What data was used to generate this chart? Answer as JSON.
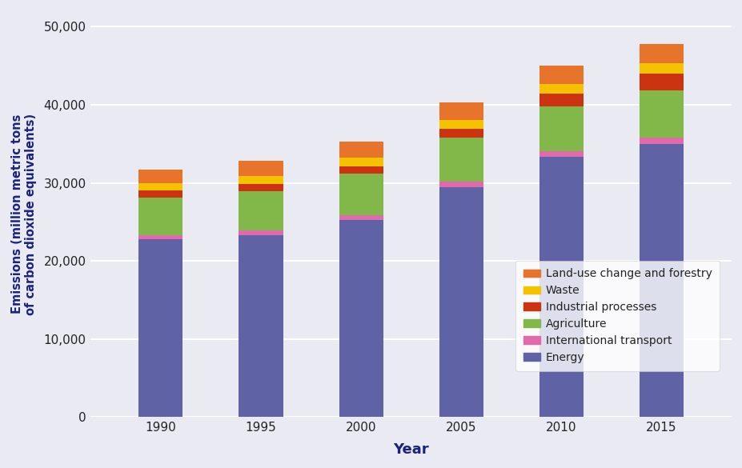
{
  "years": [
    1990,
    1995,
    2000,
    2005,
    2010,
    2015
  ],
  "Energy": [
    22800,
    23300,
    25200,
    29500,
    33300,
    35000
  ],
  "International_transport": [
    550,
    600,
    700,
    700,
    750,
    800
  ],
  "Agriculture": [
    4800,
    5000,
    5300,
    5600,
    5700,
    6000
  ],
  "Industrial_processes": [
    900,
    950,
    900,
    1100,
    1700,
    2200
  ],
  "Waste": [
    900,
    1000,
    1100,
    1200,
    1200,
    1300
  ],
  "Land_use": [
    1800,
    2000,
    2100,
    2200,
    2400,
    2500
  ],
  "colors": {
    "Energy": "#6062a6",
    "International_transport": "#e06aab",
    "Agriculture": "#82b84a",
    "Industrial_processes": "#cc3311",
    "Waste": "#f5c200",
    "Land_use": "#e8732a"
  },
  "legend_labels": [
    "Land-use change and forestry",
    "Waste",
    "Industrial processes",
    "Agriculture",
    "International transport",
    "Energy"
  ],
  "ylabel": "Emissions (million metric tons\nof carbon dioxide equivalents)",
  "xlabel": "Year",
  "ylim": [
    0,
    52000
  ],
  "yticks": [
    0,
    10000,
    20000,
    30000,
    40000,
    50000
  ],
  "background_color": "#eaebf2",
  "bar_width": 2.2,
  "xlim": [
    1986.5,
    2018.5
  ]
}
